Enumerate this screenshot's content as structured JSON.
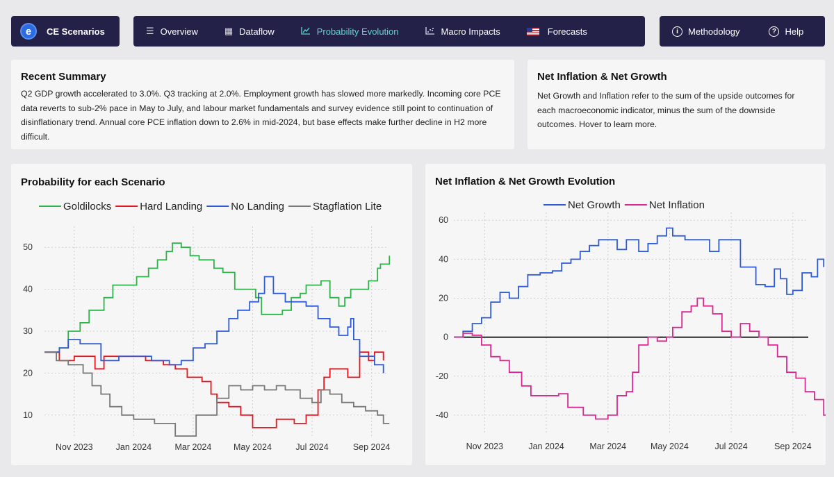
{
  "brand": {
    "name": "CE Scenarios",
    "logo_letter": "e"
  },
  "nav": {
    "items": [
      {
        "label": "Overview",
        "icon": "menu-icon"
      },
      {
        "label": "Dataflow",
        "icon": "table-icon"
      },
      {
        "label": "Probability Evolution",
        "icon": "line-chart-icon"
      },
      {
        "label": "Macro Impacts",
        "icon": "scatter-chart-icon"
      },
      {
        "label": "Forecasts",
        "icon": "us-flag-icon"
      }
    ],
    "active": "Probability Evolution",
    "active_color": "#5fd6cc"
  },
  "right_nav": {
    "methodology": "Methodology",
    "help": "Help"
  },
  "summary": {
    "title": "Recent Summary",
    "text": "Q2 GDP growth accelerated to 3.0%. Q3 tracking at 2.0%. Employment growth has slowed more markedly. Incoming core PCE data reverts to sub-2% pace in May to July, and labour market fundamentals and survey evidence still point to continuation of disinflationary trend. Annual core PCE inflation down to 2.6% in mid-2024, but base effects make further decline in H2 more difficult."
  },
  "net_info": {
    "title": "Net Inflation & Net Growth",
    "text": "Net Growth and Inflation refer to the sum of the upside outcomes for each macroeconomic indicator, minus the sum of the downside outcomes. Hover to learn more."
  },
  "chart_data": [
    {
      "type": "line",
      "title": "Probability for each Scenario",
      "x_tick_labels": [
        "Nov 2023",
        "Jan 2024",
        "Mar 2024",
        "May 2024",
        "Jul 2024",
        "Sep 2024"
      ],
      "x_tick_pos": [
        1,
        3,
        5,
        7,
        9,
        11
      ],
      "x_range": [
        0,
        11.5
      ],
      "y_ticks": [
        10,
        20,
        30,
        40,
        50
      ],
      "ylim": [
        4.5,
        55
      ],
      "grid": true,
      "series": [
        {
          "name": "Goldilocks",
          "color": "#2db34a",
          "points": [
            [
              0,
              25
            ],
            [
              0.3,
              25
            ],
            [
              0.5,
              26
            ],
            [
              0.8,
              30
            ],
            [
              1.2,
              32
            ],
            [
              1.5,
              35
            ],
            [
              2,
              38
            ],
            [
              2.3,
              41
            ],
            [
              2.8,
              41
            ],
            [
              3.1,
              43
            ],
            [
              3.5,
              45
            ],
            [
              3.8,
              47
            ],
            [
              4.1,
              49
            ],
            [
              4.3,
              51
            ],
            [
              4.6,
              50
            ],
            [
              4.9,
              48
            ],
            [
              5.2,
              47
            ],
            [
              5.6,
              47
            ],
            [
              5.7,
              45
            ],
            [
              6,
              44
            ],
            [
              6.4,
              40
            ],
            [
              6.8,
              40
            ],
            [
              7.1,
              38
            ],
            [
              7.3,
              34
            ],
            [
              7.6,
              34
            ],
            [
              8,
              35
            ],
            [
              8.3,
              38
            ],
            [
              8.6,
              39
            ],
            [
              8.8,
              41
            ],
            [
              9,
              41
            ],
            [
              9.3,
              42
            ],
            [
              9.6,
              38
            ],
            [
              9.9,
              36
            ],
            [
              10.1,
              38
            ],
            [
              10.3,
              40
            ],
            [
              10.6,
              40
            ],
            [
              10.9,
              42
            ],
            [
              11.2,
              45
            ],
            [
              11.3,
              46
            ],
            [
              11.6,
              48
            ]
          ]
        },
        {
          "name": "Hard Landing",
          "color": "#e8141b",
          "points": [
            [
              0,
              25
            ],
            [
              0.3,
              25
            ],
            [
              0.5,
              23
            ],
            [
              1,
              24
            ],
            [
              1.5,
              24
            ],
            [
              1.7,
              21
            ],
            [
              2,
              24
            ],
            [
              2.8,
              24
            ],
            [
              3.4,
              23
            ],
            [
              4,
              22
            ],
            [
              4.4,
              21
            ],
            [
              4.8,
              19
            ],
            [
              5.3,
              18
            ],
            [
              5.6,
              15
            ],
            [
              5.8,
              13
            ],
            [
              6.2,
              12
            ],
            [
              6.6,
              10
            ],
            [
              7,
              7
            ],
            [
              7.4,
              7
            ],
            [
              7.8,
              9
            ],
            [
              8.4,
              8
            ],
            [
              8.8,
              10
            ],
            [
              9.2,
              16
            ],
            [
              9.4,
              19
            ],
            [
              9.6,
              21
            ],
            [
              9.9,
              21
            ],
            [
              10.2,
              19
            ],
            [
              10.6,
              25
            ],
            [
              10.9,
              23
            ],
            [
              11.1,
              25
            ],
            [
              11.4,
              23
            ]
          ]
        },
        {
          "name": "No Landing",
          "color": "#2d5bd7",
          "points": [
            [
              0,
              25
            ],
            [
              0.5,
              26
            ],
            [
              0.8,
              28
            ],
            [
              1.2,
              27
            ],
            [
              1.6,
              27
            ],
            [
              1.9,
              23
            ],
            [
              2.2,
              23
            ],
            [
              2.5,
              24
            ],
            [
              3.2,
              24
            ],
            [
              3.6,
              23
            ],
            [
              4.2,
              22
            ],
            [
              4.6,
              23
            ],
            [
              5,
              26
            ],
            [
              5.4,
              27
            ],
            [
              5.8,
              30
            ],
            [
              6.2,
              33
            ],
            [
              6.5,
              35
            ],
            [
              6.9,
              37
            ],
            [
              7.2,
              39
            ],
            [
              7.4,
              43
            ],
            [
              7.7,
              39
            ],
            [
              8.1,
              37
            ],
            [
              8.4,
              37
            ],
            [
              8.8,
              36
            ],
            [
              9.2,
              33
            ],
            [
              9.6,
              31
            ],
            [
              9.9,
              29
            ],
            [
              10.2,
              31
            ],
            [
              10.3,
              33
            ],
            [
              10.4,
              28
            ],
            [
              10.6,
              24
            ],
            [
              10.9,
              24
            ],
            [
              11.1,
              22
            ],
            [
              11.4,
              20
            ]
          ]
        },
        {
          "name": "Stagflation Lite",
          "color": "#777777",
          "points": [
            [
              0,
              25
            ],
            [
              0.4,
              23
            ],
            [
              0.8,
              22
            ],
            [
              1.3,
              20
            ],
            [
              1.6,
              17
            ],
            [
              1.9,
              15
            ],
            [
              2.2,
              12
            ],
            [
              2.6,
              10
            ],
            [
              3,
              9
            ],
            [
              3.4,
              9
            ],
            [
              3.7,
              8
            ],
            [
              4.1,
              8
            ],
            [
              4.4,
              5
            ],
            [
              4.8,
              5
            ],
            [
              5.1,
              10
            ],
            [
              5.5,
              10
            ],
            [
              5.8,
              14
            ],
            [
              6.2,
              17
            ],
            [
              6.6,
              16
            ],
            [
              7,
              17
            ],
            [
              7.4,
              16
            ],
            [
              7.8,
              17
            ],
            [
              8.1,
              16
            ],
            [
              8.6,
              14
            ],
            [
              9,
              13
            ],
            [
              9.3,
              16
            ],
            [
              9.6,
              15
            ],
            [
              10,
              13
            ],
            [
              10.4,
              12
            ],
            [
              10.8,
              11
            ],
            [
              11.2,
              10
            ],
            [
              11.4,
              8
            ],
            [
              11.6,
              8
            ]
          ]
        }
      ]
    },
    {
      "type": "line",
      "title": "Net Inflation & Net Growth Evolution",
      "x_tick_labels": [
        "Nov 2023",
        "Jan 2024",
        "Mar 2024",
        "May 2024",
        "Jul 2024",
        "Sep 2024"
      ],
      "x_tick_pos": [
        1,
        3,
        5,
        7,
        9,
        11
      ],
      "x_range": [
        0,
        11.5
      ],
      "y_ticks": [
        -40,
        -20,
        0,
        20,
        40,
        60
      ],
      "ylim": [
        -50,
        64
      ],
      "grid": true,
      "zero_line": true,
      "series": [
        {
          "name": "Net Growth",
          "color": "#2d5bd7",
          "points": [
            [
              0,
              0
            ],
            [
              0.3,
              3
            ],
            [
              0.6,
              7
            ],
            [
              0.9,
              10
            ],
            [
              1.2,
              18
            ],
            [
              1.5,
              23
            ],
            [
              1.8,
              20
            ],
            [
              2.1,
              26
            ],
            [
              2.4,
              32
            ],
            [
              2.8,
              33
            ],
            [
              3.2,
              34
            ],
            [
              3.5,
              38
            ],
            [
              3.8,
              40
            ],
            [
              4.1,
              44
            ],
            [
              4.4,
              47
            ],
            [
              4.7,
              50
            ],
            [
              5,
              50
            ],
            [
              5.3,
              45
            ],
            [
              5.6,
              50
            ],
            [
              6,
              44
            ],
            [
              6.3,
              48
            ],
            [
              6.6,
              52
            ],
            [
              6.9,
              56
            ],
            [
              7.1,
              52
            ],
            [
              7.5,
              50
            ],
            [
              8,
              50
            ],
            [
              8.3,
              44
            ],
            [
              8.6,
              50
            ],
            [
              9.1,
              50
            ],
            [
              9.3,
              36
            ],
            [
              9.6,
              36
            ],
            [
              9.8,
              27
            ],
            [
              10.1,
              26
            ],
            [
              10.4,
              35
            ],
            [
              10.6,
              30
            ],
            [
              10.8,
              22
            ],
            [
              11,
              24
            ],
            [
              11.3,
              33
            ],
            [
              11.6,
              31
            ],
            [
              11.8,
              40
            ],
            [
              12,
              36
            ]
          ]
        },
        {
          "name": "Net Inflation",
          "color": "#d9278f",
          "points": [
            [
              0,
              0
            ],
            [
              0.3,
              2
            ],
            [
              0.6,
              1
            ],
            [
              0.9,
              -4
            ],
            [
              1.2,
              -10
            ],
            [
              1.5,
              -12
            ],
            [
              1.8,
              -18
            ],
            [
              2.2,
              -25
            ],
            [
              2.5,
              -30
            ],
            [
              3,
              -30
            ],
            [
              3.4,
              -29
            ],
            [
              3.7,
              -36
            ],
            [
              4.2,
              -40
            ],
            [
              4.6,
              -42
            ],
            [
              5,
              -40
            ],
            [
              5.3,
              -30
            ],
            [
              5.6,
              -28
            ],
            [
              5.8,
              -18
            ],
            [
              6,
              -4
            ],
            [
              6.3,
              0
            ],
            [
              6.6,
              -2
            ],
            [
              6.9,
              0
            ],
            [
              7.1,
              5
            ],
            [
              7.4,
              13
            ],
            [
              7.7,
              16
            ],
            [
              7.9,
              20
            ],
            [
              8.1,
              16
            ],
            [
              8.4,
              12
            ],
            [
              8.7,
              3
            ],
            [
              9,
              0
            ],
            [
              9.3,
              7
            ],
            [
              9.6,
              3
            ],
            [
              9.9,
              0
            ],
            [
              10.2,
              -4
            ],
            [
              10.5,
              -10
            ],
            [
              10.8,
              -18
            ],
            [
              11.1,
              -21
            ],
            [
              11.4,
              -28
            ],
            [
              11.7,
              -32
            ],
            [
              12,
              -40
            ],
            [
              12.2,
              -44
            ]
          ]
        }
      ]
    }
  ]
}
